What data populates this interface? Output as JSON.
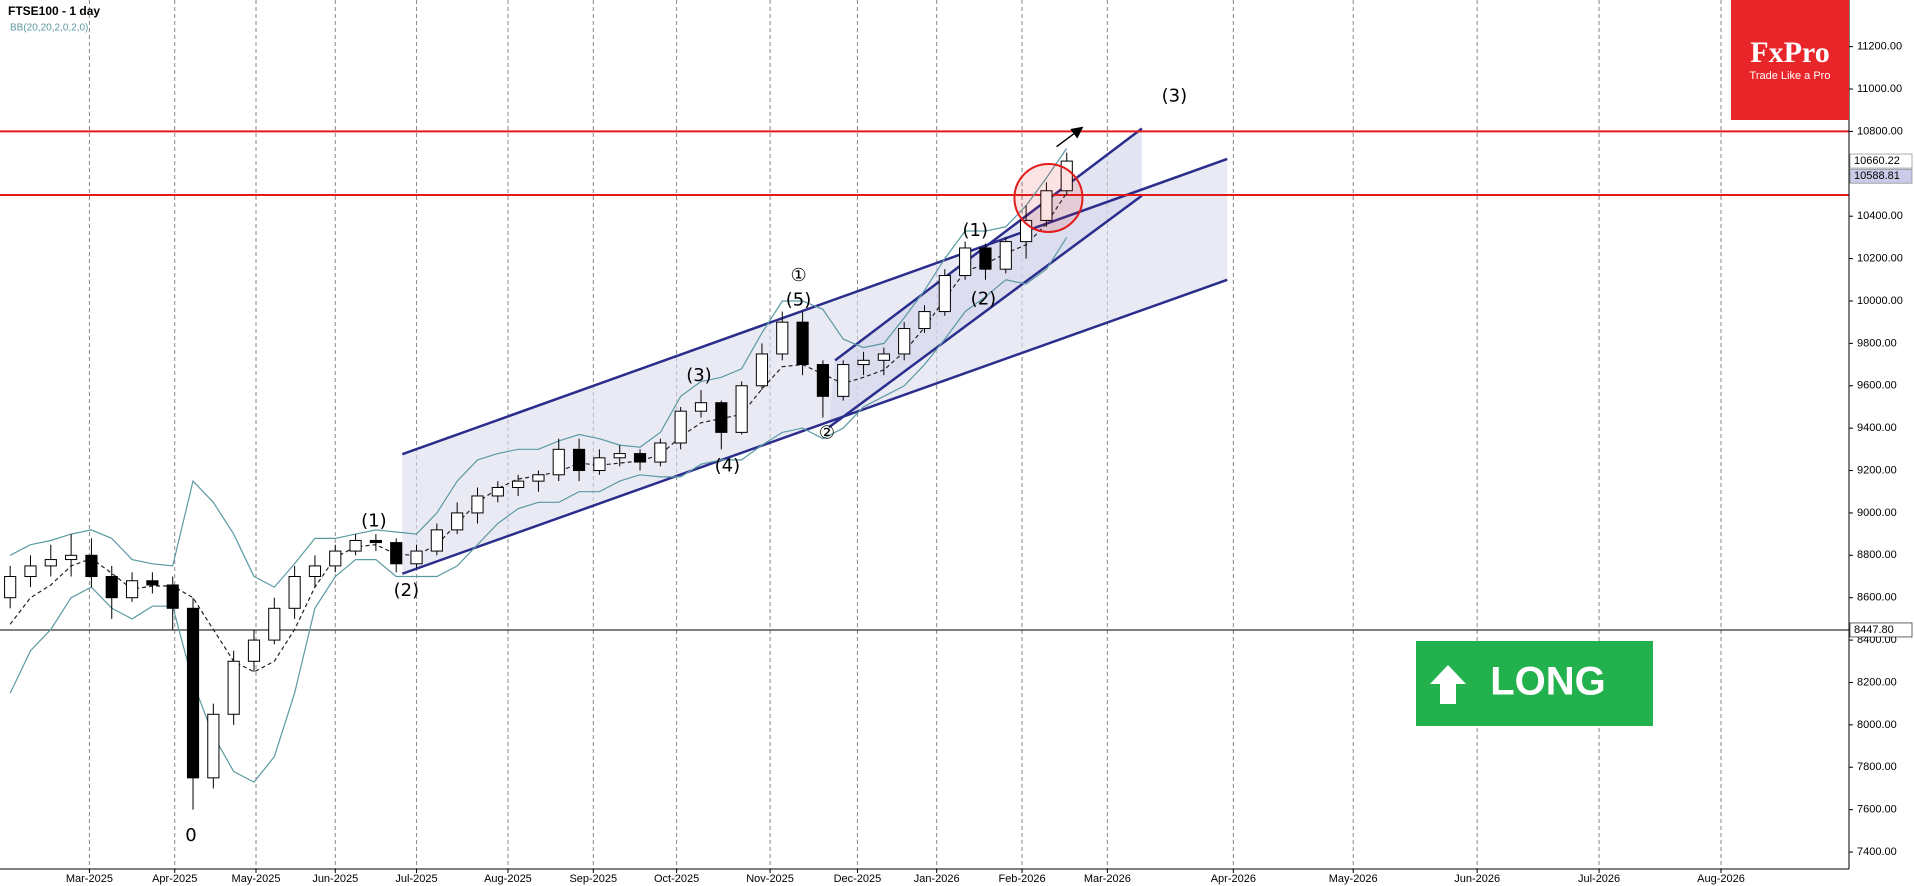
{
  "chart_data": {
    "type": "candlestick",
    "title": "FTSE100 - 1 day",
    "indicator": "BB(20,20,2,0,2,0)",
    "categories": [
      null,
      null,
      null,
      null,
      null,
      null,
      null,
      null,
      null,
      null,
      null,
      null,
      null,
      null,
      null,
      null,
      null,
      null,
      null,
      null,
      null,
      null,
      null,
      null,
      null,
      null,
      null,
      null,
      null,
      null,
      null,
      null,
      null,
      null,
      null,
      null,
      null,
      null,
      null,
      null,
      null,
      null,
      null,
      null,
      null,
      null,
      null,
      null,
      null,
      null,
      null,
      null,
      null
    ],
    "open": [
      8600,
      8700,
      8750,
      8780,
      8800,
      8700,
      8600,
      8680,
      8660,
      8550,
      7750,
      8050,
      8300,
      8400,
      8550,
      8700,
      8750,
      8820,
      8870,
      8860,
      8760,
      8820,
      8920,
      9000,
      9080,
      9120,
      9150,
      9180,
      9300,
      9200,
      9260,
      9280,
      9240,
      9330,
      9480,
      9520,
      9380,
      9600,
      9750,
      9900,
      9700,
      9550,
      9700,
      9720,
      9750,
      9870,
      9950,
      10120,
      10250,
      10150,
      10280,
      10380,
      10520
    ],
    "high": [
      8750,
      8800,
      8850,
      8900,
      8880,
      8750,
      8720,
      8720,
      8700,
      8600,
      8100,
      8350,
      8450,
      8600,
      8750,
      8800,
      8850,
      8900,
      8900,
      8880,
      8850,
      8950,
      9050,
      9120,
      9150,
      9180,
      9200,
      9350,
      9350,
      9300,
      9320,
      9300,
      9350,
      9500,
      9580,
      9530,
      9620,
      9800,
      9950,
      9950,
      9720,
      9720,
      9760,
      9780,
      9900,
      9980,
      10150,
      10280,
      10270,
      10300,
      10450,
      10560,
      10700
    ],
    "low": [
      8550,
      8650,
      8700,
      8700,
      8650,
      8500,
      8580,
      8620,
      8450,
      7600,
      7700,
      8000,
      8250,
      8380,
      8500,
      8650,
      8720,
      8800,
      8820,
      8720,
      8740,
      8800,
      8900,
      8950,
      9050,
      9080,
      9100,
      9150,
      9150,
      9180,
      9220,
      9200,
      9220,
      9300,
      9450,
      9300,
      9370,
      9580,
      9720,
      9650,
      9450,
      9530,
      9650,
      9650,
      9720,
      9850,
      9930,
      10100,
      10100,
      10130,
      10200,
      10350,
      10500
    ],
    "close": [
      8700,
      8750,
      8780,
      8800,
      8700,
      8600,
      8680,
      8660,
      8550,
      7750,
      8050,
      8300,
      8400,
      8550,
      8700,
      8750,
      8820,
      8870,
      8860,
      8760,
      8820,
      8920,
      9000,
      9080,
      9120,
      9150,
      9180,
      9300,
      9200,
      9260,
      9280,
      9240,
      9330,
      9480,
      9520,
      9380,
      9600,
      9750,
      9900,
      9700,
      9550,
      9700,
      9720,
      9750,
      9870,
      9950,
      10120,
      10250,
      10150,
      10280,
      10380,
      10520,
      10660
    ],
    "bollinger": {
      "color": "#5b9aa3",
      "upper": [
        8800,
        8850,
        8870,
        8900,
        8920,
        8880,
        8780,
        8760,
        8750,
        9150,
        9050,
        8900,
        8700,
        8650,
        8760,
        8880,
        8880,
        8900,
        8920,
        8910,
        8900,
        9000,
        9150,
        9250,
        9280,
        9300,
        9300,
        9340,
        9370,
        9350,
        9320,
        9310,
        9380,
        9550,
        9620,
        9640,
        9680,
        9850,
        10000,
        10000,
        9960,
        9820,
        9780,
        9800,
        9920,
        10050,
        10200,
        10330,
        10330,
        10350,
        10450,
        10580,
        10720
      ],
      "middle": [
        8475,
        8600,
        8660,
        8750,
        8785,
        8715,
        8640,
        8655,
        8655,
        8600,
        8450,
        8300,
        8250,
        8300,
        8450,
        8650,
        8790,
        8840,
        8850,
        8805,
        8800,
        8850,
        8950,
        9050,
        9115,
        9160,
        9175,
        9195,
        9235,
        9225,
        9235,
        9245,
        9275,
        9360,
        9425,
        9445,
        9465,
        9585,
        9690,
        9700,
        9655,
        9610,
        9640,
        9675,
        9760,
        9875,
        10010,
        10140,
        10175,
        10225,
        10265,
        10365,
        10510
      ],
      "lower": [
        8150,
        8350,
        8450,
        8600,
        8650,
        8550,
        8500,
        8560,
        8560,
        8200,
        7950,
        7780,
        7730,
        7850,
        8150,
        8550,
        8700,
        8780,
        8780,
        8700,
        8700,
        8700,
        8750,
        8850,
        8950,
        9020,
        9050,
        9050,
        9100,
        9100,
        9150,
        9180,
        9170,
        9170,
        9230,
        9250,
        9250,
        9320,
        9380,
        9400,
        9350,
        9400,
        9500,
        9550,
        9600,
        9700,
        9820,
        9950,
        10020,
        10100,
        10080,
        10150,
        10300
      ]
    },
    "xlim": [
      0,
      91
    ],
    "xticks": [
      {
        "value": 4.4,
        "label": "Mar-2025"
      },
      {
        "value": 8.6,
        "label": "Apr-2025"
      },
      {
        "value": 12.6,
        "label": "May-2025"
      },
      {
        "value": 16.5,
        "label": "Jun-2025"
      },
      {
        "value": 20.5,
        "label": "Jul-2025"
      },
      {
        "value": 25,
        "label": "Aug-2025"
      },
      {
        "value": 29.2,
        "label": "Sep-2025"
      },
      {
        "value": 33.3,
        "label": "Oct-2025"
      },
      {
        "value": 37.9,
        "label": "Nov-2025"
      },
      {
        "value": 42.2,
        "label": "Dec-2025"
      },
      {
        "value": 46.1,
        "label": "Jan-2026"
      },
      {
        "value": 50.3,
        "label": "Feb-2026"
      },
      {
        "value": 54.5,
        "label": "Mar-2026"
      },
      {
        "value": 60.7,
        "label": "Apr-2026"
      },
      {
        "value": 66.6,
        "label": "May-2026"
      },
      {
        "value": 72.7,
        "label": "Jun-2026"
      },
      {
        "value": 78.7,
        "label": "Jul-2026"
      },
      {
        "value": 84.7,
        "label": "Aug-2026"
      }
    ],
    "ylim": [
      7320,
      11420
    ],
    "yticks": [
      {
        "value": 7400,
        "label": "7400.00"
      },
      {
        "value": 7600,
        "label": "7600.00"
      },
      {
        "value": 7800,
        "label": "7800.00"
      },
      {
        "value": 8000,
        "label": "8000.00"
      },
      {
        "value": 8200,
        "label": "8200.00"
      },
      {
        "value": 8400,
        "label": "8400.00"
      },
      {
        "value": 8600,
        "label": "8600.00"
      },
      {
        "value": 8800,
        "label": "8800.00"
      },
      {
        "value": 9000,
        "label": "9000.00"
      },
      {
        "value": 9200,
        "label": "9200.00"
      },
      {
        "value": 9400,
        "label": "9400.00"
      },
      {
        "value": 9600,
        "label": "9600.00"
      },
      {
        "value": 9800,
        "label": "9800.00"
      },
      {
        "value": 10000,
        "label": "10000.00"
      },
      {
        "value": 10200,
        "label": "10200.00"
      },
      {
        "value": 10400,
        "label": "10400.00"
      },
      {
        "value": 10600,
        "label": "10600.00"
      },
      {
        "value": 10800,
        "label": "10800.00"
      },
      {
        "value": 11000,
        "label": "11000.00"
      },
      {
        "value": 11200,
        "label": "11200.00"
      }
    ],
    "grid": "vertical",
    "levels": [
      {
        "value": 10800,
        "color": "#e31b1b"
      },
      {
        "value": 10500,
        "color": "#e31b1b"
      }
    ],
    "reference_line": {
      "value": 8447.8,
      "label": "8447.80"
    },
    "price_labels": [
      {
        "value": 10660.22,
        "label": "10660.22"
      },
      {
        "value": 10588.81,
        "label": "10588.81"
      }
    ],
    "channels": [
      {
        "color": "#2a2d8c",
        "fill": "#dcdcef",
        "upper": {
          "x": [
            19.8,
            60.4
          ],
          "y": [
            9277,
            10670
          ]
        },
        "lower": {
          "x": [
            19.8,
            60.4
          ],
          "y": [
            8713,
            10100
          ]
        }
      },
      {
        "color": "#2a2d8c",
        "fill": "#d2d3ea",
        "upper": {
          "x": [
            41.1,
            56.2
          ],
          "y": [
            9720,
            10814
          ]
        },
        "lower": {
          "x": [
            40.8,
            56.2
          ],
          "y": [
            9404,
            10497
          ]
        }
      }
    ],
    "waves": [
      {
        "label": "(1)",
        "x": 18.4,
        "y": 8960
      },
      {
        "label": "(2)",
        "x": 20,
        "y": 8632
      },
      {
        "label": "①",
        "x": 39.3,
        "y": 10117
      },
      {
        "label": "(5)",
        "x": 39.3,
        "y": 10002
      },
      {
        "label": "(3)",
        "x": 34.4,
        "y": 9645
      },
      {
        "label": "(4)",
        "x": 35.8,
        "y": 9219
      },
      {
        "label": "②",
        "x": 40.7,
        "y": 9375
      },
      {
        "label": "(1)",
        "x": 48,
        "y": 10330
      },
      {
        "label": "(2)",
        "x": 48.4,
        "y": 10008
      },
      {
        "label": "(3)",
        "x": 57.8,
        "y": 10964
      },
      {
        "label": "0",
        "x": 9.4,
        "y": 7475
      }
    ],
    "highlight": {
      "x": 51.6,
      "y": 10486,
      "color": "#e31b1b"
    },
    "arrow": {
      "x": [
        52,
        53.2
      ],
      "y": [
        10728,
        10814
      ]
    },
    "logo": {
      "brand": "FxPro",
      "tagline": "Trade Like a Pro",
      "color": "#e8262a"
    },
    "signal": {
      "label": "LONG",
      "color": "#22b14c"
    }
  }
}
